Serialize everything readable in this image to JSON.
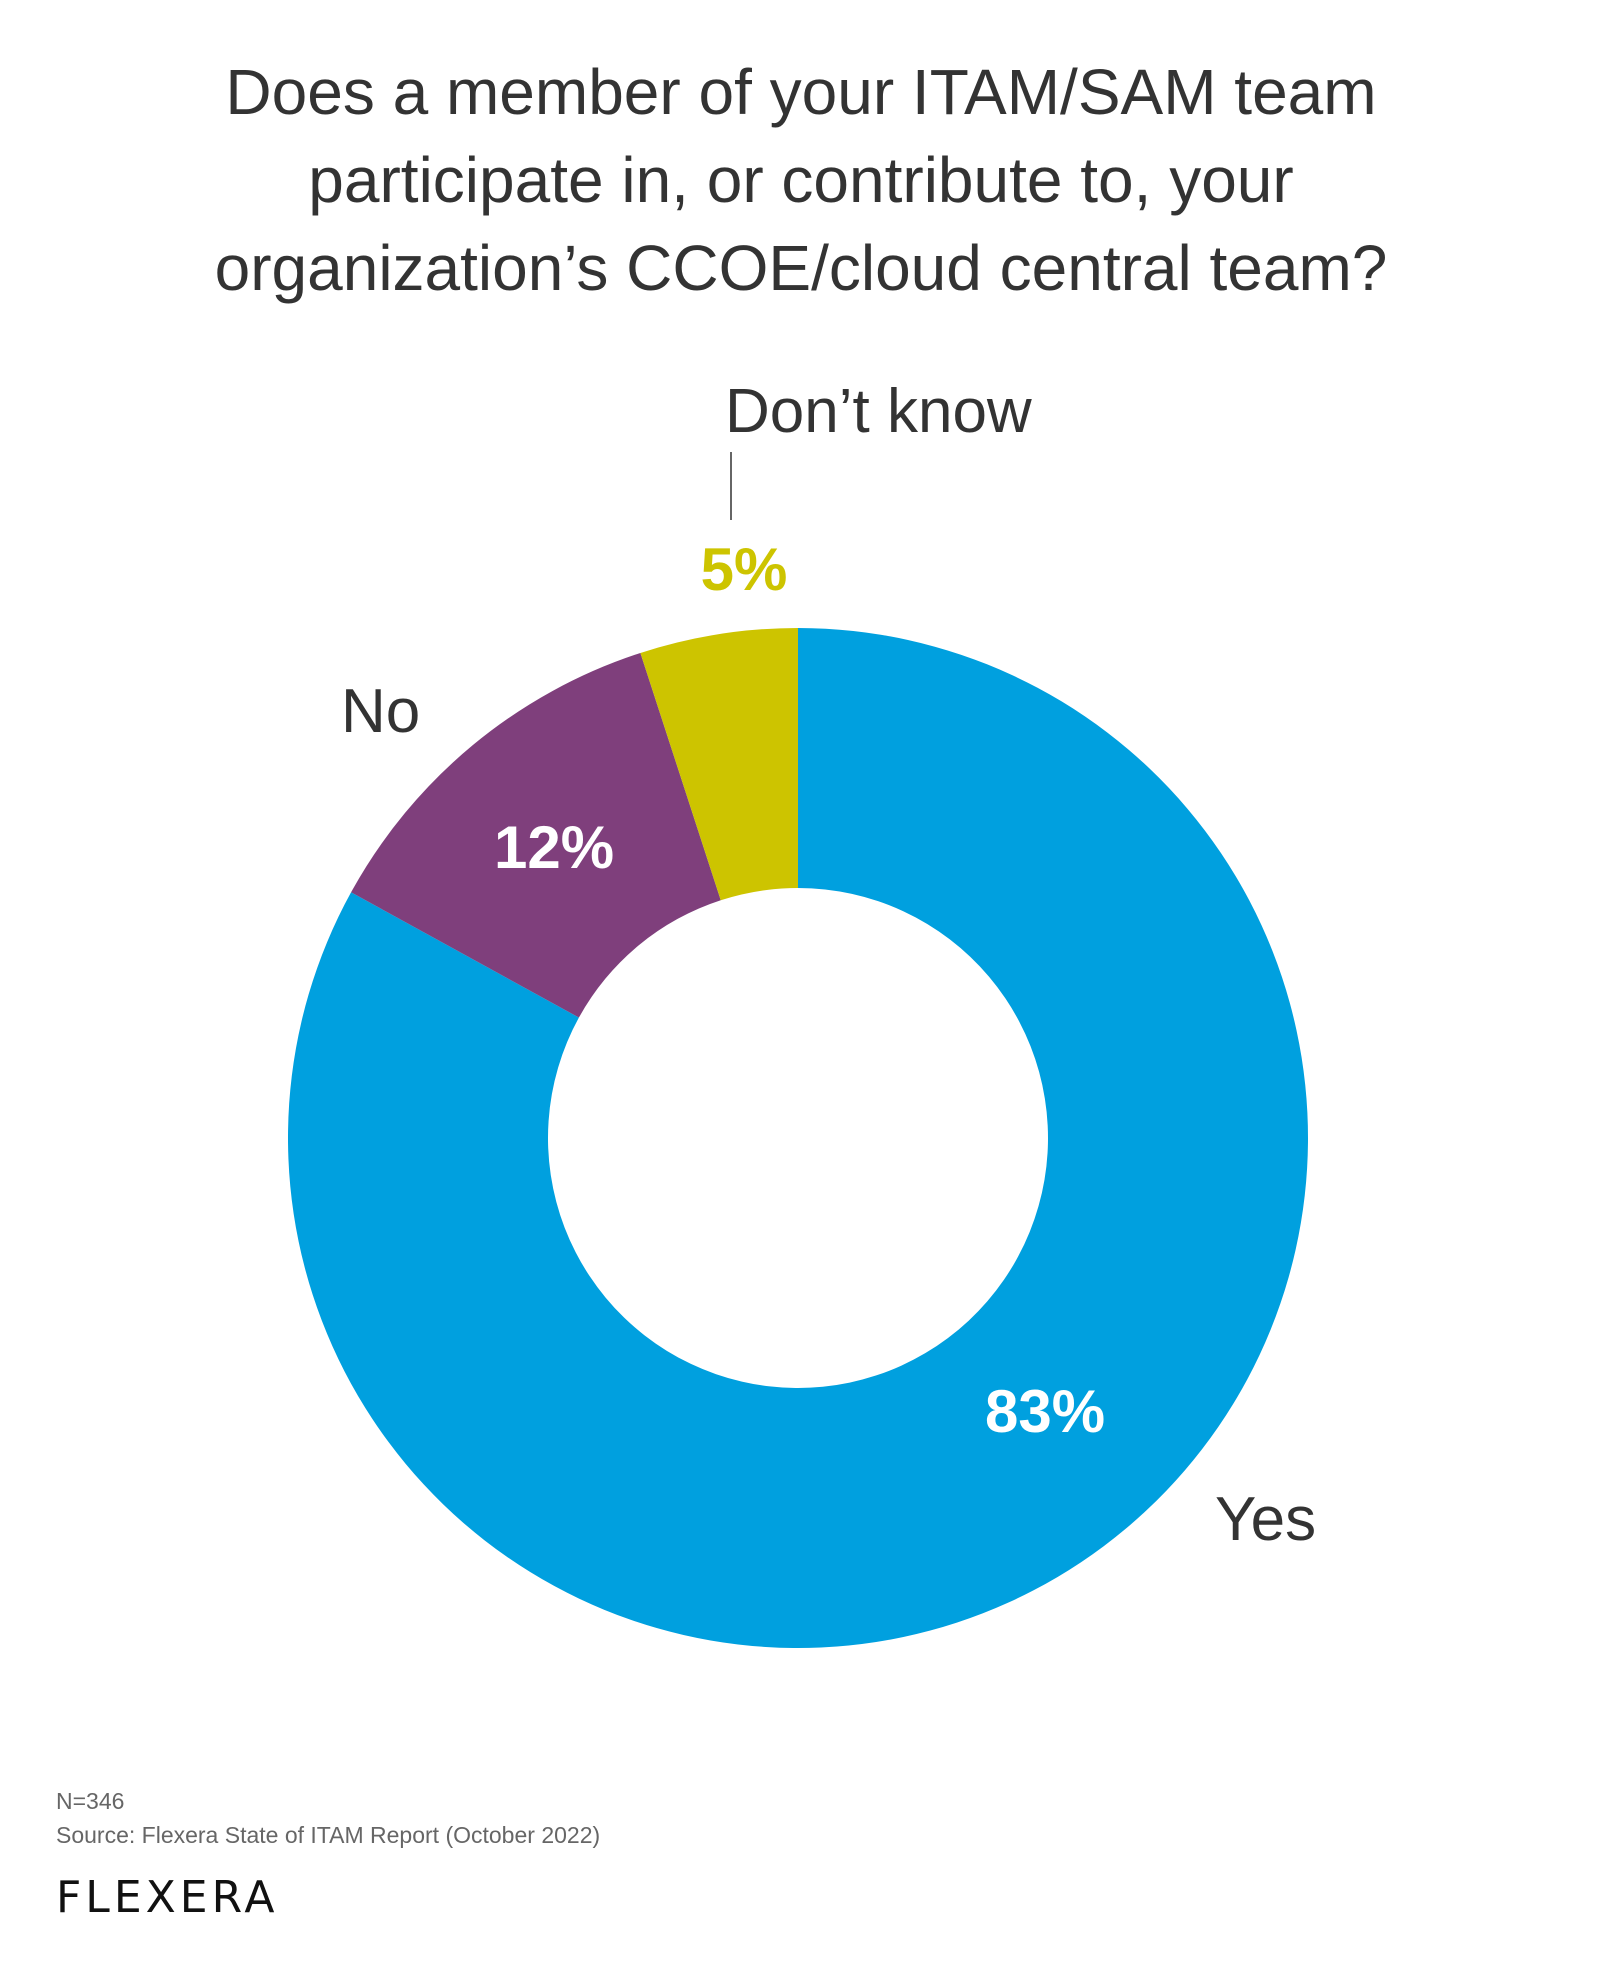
{
  "title_lines": [
    "Does a member of your ITAM/SAM team",
    "participate in, or contribute to, your",
    "organization’s CCOE/cloud central team?"
  ],
  "chart_data": {
    "type": "pie",
    "variant": "donut",
    "title": "Does a member of your ITAM/SAM team participate in, or contribute to, your organization’s CCOE/cloud central team?",
    "categories": [
      "Yes",
      "No",
      "Don’t know"
    ],
    "values": [
      83,
      12,
      5
    ],
    "value_labels": [
      "83%",
      "12%",
      "5%"
    ],
    "colors": [
      "#00a0df",
      "#7f3f7c",
      "#cdc400"
    ],
    "label_colors": [
      "#ffffff",
      "#ffffff",
      "#cdc400"
    ],
    "start": "top",
    "direction": "clockwise"
  },
  "footer": {
    "n": "N=346",
    "source": "Source: Flexera State of ITAM Report (October 2022)",
    "logo": "flexera"
  }
}
